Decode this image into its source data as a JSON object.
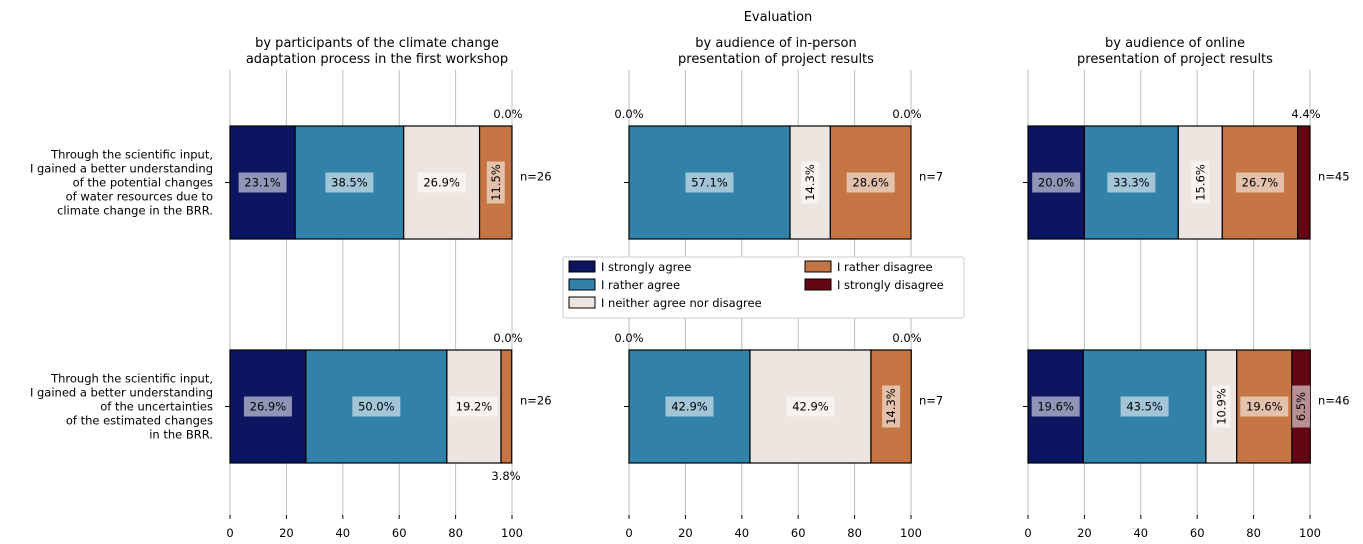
{
  "chart_data": {
    "type": "bar",
    "orientation": "horizontal-stacked",
    "title": "Evaluation",
    "xlim": [
      0,
      100
    ],
    "x_ticks": [
      "0",
      "20",
      "40",
      "60",
      "80",
      "100"
    ],
    "grid": "vertical",
    "legend_position": "center",
    "legend": [
      {
        "name": "I strongly agree",
        "color": "#0b1560"
      },
      {
        "name": "I rather agree",
        "color": "#3281a9"
      },
      {
        "name": "I neither agree nor disagree",
        "color": "#ede5df"
      },
      {
        "name": "I rather disagree",
        "color": "#c47543"
      },
      {
        "name": "I strongly disagree",
        "color": "#640712"
      }
    ],
    "questions": [
      "Through the scientific input,\nI gained a better understanding\nof the potential changes\nof water resources due to\nclimate change in the BRR.",
      "Through the scientific input,\nI gained a better understanding\nof the uncertainties\nof the estimated changes\nin the BRR."
    ],
    "panels": [
      {
        "subtitle": "by participants of the climate change\nadaptation process in the first workshop",
        "rows": [
          {
            "values": [
              23.1,
              38.5,
              26.9,
              11.5,
              0.0
            ],
            "labels": [
              "23.1%",
              "38.5%",
              "26.9%",
              "11.5%",
              "0.0%"
            ],
            "n": "n=26"
          },
          {
            "values": [
              26.9,
              50.0,
              19.2,
              3.8,
              0.0
            ],
            "labels": [
              "26.9%",
              "50.0%",
              "19.2%",
              "3.8%",
              "0.0%"
            ],
            "n": "n=26"
          }
        ]
      },
      {
        "subtitle": "by audience of in-person\npresentation of project results",
        "rows": [
          {
            "values": [
              0.0,
              57.1,
              14.3,
              28.6,
              0.0
            ],
            "labels": [
              "0.0%",
              "57.1%",
              "14.3%",
              "28.6%",
              "0.0%"
            ],
            "n": "n=7"
          },
          {
            "values": [
              0.0,
              42.9,
              42.9,
              14.3,
              0.0
            ],
            "labels": [
              "0.0%",
              "42.9%",
              "42.9%",
              "14.3%",
              "0.0%"
            ],
            "n": "n=7"
          }
        ]
      },
      {
        "subtitle": "by audience of online\npresentation of project results",
        "rows": [
          {
            "values": [
              20.0,
              33.3,
              15.6,
              26.7,
              4.4
            ],
            "labels": [
              "20.0%",
              "33.3%",
              "15.6%",
              "26.7%",
              "4.4%"
            ],
            "n": "n=45"
          },
          {
            "values": [
              19.6,
              43.5,
              10.9,
              19.6,
              6.5
            ],
            "labels": [
              "19.6%",
              "43.5%",
              "10.9%",
              "19.6%",
              "6.5%"
            ],
            "n": "n=46"
          }
        ]
      }
    ]
  }
}
